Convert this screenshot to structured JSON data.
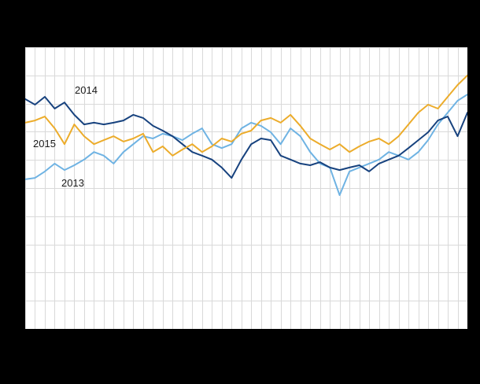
{
  "canvas": {
    "background": "#000000",
    "plot_background": "#ffffff",
    "grid_color": "#d9d9d9"
  },
  "chart_data": {
    "type": "line",
    "title": "",
    "xlabel": "",
    "ylabel": "",
    "ylim": [
      0,
      100
    ],
    "grid": {
      "vertical": true,
      "horizontal_intervals": 10,
      "legend_position": "inline-annotations"
    },
    "x": [
      1,
      2,
      3,
      4,
      5,
      6,
      7,
      8,
      9,
      10,
      11,
      12,
      13,
      14,
      15,
      16,
      17,
      18,
      19,
      20,
      21,
      22,
      23,
      24,
      25,
      26,
      27,
      28,
      29,
      30,
      31,
      32,
      33,
      34,
      35,
      36,
      37,
      38,
      39,
      40,
      41,
      42,
      43,
      44,
      45,
      46
    ],
    "series": [
      {
        "name": "2013",
        "color": "#6fb3e3",
        "values": [
          53.1,
          53.6,
          55.9,
          58.7,
          56.4,
          58.1,
          60.1,
          62.8,
          61.5,
          58.7,
          62.8,
          65.6,
          68.4,
          67.6,
          69.3,
          68.4,
          67.0,
          69.3,
          71.2,
          65.6,
          64.2,
          65.6,
          71.2,
          73.2,
          72.1,
          69.8,
          65.6,
          71.2,
          68.4,
          62.8,
          58.7,
          57.3,
          47.5,
          55.9,
          57.3,
          58.7,
          60.1,
          62.8,
          61.5,
          60.1,
          62.8,
          67.0,
          72.6,
          76.8,
          81.0,
          83.2
        ]
      },
      {
        "name": "2014",
        "color": "#17427e",
        "values": [
          81.6,
          79.6,
          82.4,
          78.2,
          80.4,
          76.0,
          72.6,
          73.2,
          72.6,
          73.2,
          74.0,
          76.0,
          74.9,
          72.1,
          70.4,
          68.4,
          65.6,
          62.8,
          61.5,
          60.1,
          57.3,
          53.6,
          60.1,
          65.6,
          67.6,
          67.0,
          61.5,
          60.1,
          58.7,
          58.1,
          59.2,
          57.3,
          56.4,
          57.3,
          58.1,
          55.9,
          58.7,
          60.1,
          61.5,
          64.2,
          67.0,
          69.8,
          74.0,
          75.4,
          68.4,
          76.8
        ]
      },
      {
        "name": "2015",
        "color": "#ecac2b",
        "values": [
          73.2,
          74.0,
          75.4,
          71.2,
          65.6,
          72.6,
          68.4,
          65.6,
          67.0,
          68.4,
          66.5,
          67.6,
          69.3,
          62.8,
          64.8,
          61.5,
          63.7,
          65.6,
          62.8,
          64.8,
          67.6,
          66.5,
          69.3,
          70.4,
          74.0,
          74.9,
          73.2,
          76.0,
          72.1,
          67.6,
          65.6,
          63.7,
          65.6,
          62.8,
          64.8,
          66.5,
          67.6,
          65.6,
          68.4,
          72.6,
          76.8,
          79.6,
          78.2,
          82.4,
          86.6,
          90.0
        ]
      }
    ],
    "annotations": [
      {
        "text": "2014",
        "series": "2014"
      },
      {
        "text": "2015",
        "series": "2015"
      },
      {
        "text": "2013",
        "series": "2013"
      }
    ]
  }
}
